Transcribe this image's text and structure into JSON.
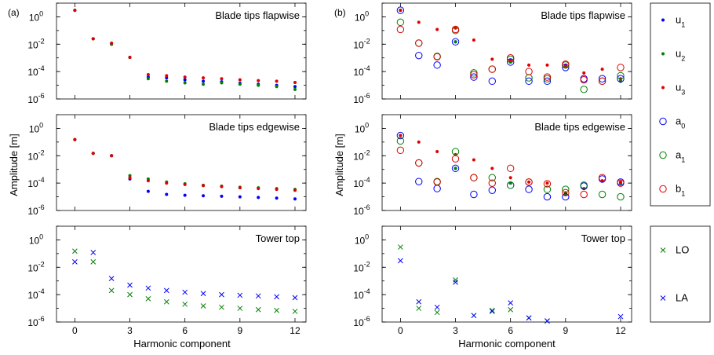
{
  "panel_labels": [
    "(a)",
    "(b)"
  ],
  "xlabel": "Harmonic component",
  "ylabel": "Amplitude [m]",
  "x_ticks": [
    "0",
    "3",
    "6",
    "9",
    "12"
  ],
  "y_ticks": [
    "10^0",
    "10^-2",
    "10^-4",
    "10^-6"
  ],
  "colors": {
    "blue": "#0000ff",
    "green": "#008000",
    "red": "#e00000"
  },
  "legend_blade": [
    {
      "base": "u",
      "sub": "1",
      "marker": "dot",
      "color": "blue"
    },
    {
      "base": "u",
      "sub": "2",
      "marker": "dot",
      "color": "green"
    },
    {
      "base": "u",
      "sub": "3",
      "marker": "dot",
      "color": "red"
    },
    {
      "base": "a",
      "sub": "0",
      "marker": "circle",
      "color": "blue"
    },
    {
      "base": "a",
      "sub": "1",
      "marker": "circle",
      "color": "green"
    },
    {
      "base": "b",
      "sub": "1",
      "marker": "circle",
      "color": "red"
    }
  ],
  "legend_tower": [
    {
      "label": "LO",
      "marker": "x",
      "color": "green"
    },
    {
      "label": "LA",
      "marker": "x",
      "color": "blue"
    }
  ],
  "chart_data": [
    {
      "type": "scatter",
      "title": "Blade tips flapwise",
      "panel": "(a)",
      "xlim": [
        -1,
        12.6
      ],
      "ylim": [
        1e-06,
        10
      ],
      "yscale": "log",
      "series": [
        {
          "name": "u1",
          "marker": "dot",
          "color": "blue",
          "x": [
            0,
            1,
            2,
            3,
            4,
            5,
            6,
            7,
            8,
            9,
            10,
            11,
            12
          ],
          "y": [
            3,
            0.025,
            0.01,
            0.0011,
            4e-05,
            3.5e-05,
            2.5e-05,
            2e-05,
            1.8e-05,
            1.4e-05,
            1.2e-05,
            1e-05,
            8e-06
          ]
        },
        {
          "name": "u2",
          "marker": "dot",
          "color": "green",
          "x": [
            0,
            1,
            2,
            3,
            4,
            5,
            6,
            7,
            8,
            9,
            10,
            11,
            12
          ],
          "y": [
            3,
            0.025,
            0.01,
            0.0011,
            3e-05,
            2e-05,
            1.5e-05,
            1.2e-05,
            1.5e-05,
            1.2e-05,
            1e-05,
            8e-06,
            5e-06
          ]
        },
        {
          "name": "u3",
          "marker": "dot",
          "color": "red",
          "x": [
            0,
            1,
            2,
            3,
            4,
            5,
            6,
            7,
            8,
            9,
            10,
            11,
            12
          ],
          "y": [
            3,
            0.025,
            0.012,
            0.0011,
            6e-05,
            5e-05,
            4e-05,
            3.5e-05,
            3e-05,
            2.5e-05,
            2.2e-05,
            2e-05,
            1.6e-05
          ]
        }
      ]
    },
    {
      "type": "scatter",
      "title": "Blade tips edgewise",
      "panel": "(a)",
      "xlim": [
        -1,
        12.6
      ],
      "ylim": [
        1e-06,
        10
      ],
      "yscale": "log",
      "series": [
        {
          "name": "u1",
          "marker": "dot",
          "color": "blue",
          "x": [
            0,
            1,
            2,
            3,
            4,
            5,
            6,
            7,
            8,
            9,
            10,
            11,
            12
          ],
          "y": [
            0.15,
            0.015,
            0.01,
            0.0002,
            2.5e-05,
            1.5e-05,
            1.3e-05,
            1.2e-05,
            1.1e-05,
            1e-05,
            9e-06,
            8e-06,
            7e-06
          ]
        },
        {
          "name": "u2",
          "marker": "dot",
          "color": "green",
          "x": [
            0,
            1,
            2,
            3,
            4,
            5,
            6,
            7,
            8,
            9,
            10,
            11,
            12
          ],
          "y": [
            0.15,
            0.015,
            0.01,
            0.00035,
            0.0002,
            0.00012,
            9e-05,
            7e-05,
            6e-05,
            5e-05,
            4.5e-05,
            4e-05,
            3.5e-05
          ]
        },
        {
          "name": "u3",
          "marker": "dot",
          "color": "red",
          "x": [
            0,
            1,
            2,
            3,
            4,
            5,
            6,
            7,
            8,
            9,
            10,
            11,
            12
          ],
          "y": [
            0.15,
            0.015,
            0.01,
            0.00025,
            0.00015,
            0.0001,
            8e-05,
            6.5e-05,
            5.5e-05,
            4.5e-05,
            4e-05,
            3.5e-05,
            3e-05
          ]
        }
      ]
    },
    {
      "type": "scatter",
      "title": "Tower top",
      "panel": "(a)",
      "xlim": [
        -1,
        12.6
      ],
      "ylim": [
        1e-06,
        10
      ],
      "yscale": "log",
      "series": [
        {
          "name": "LO",
          "marker": "x",
          "color": "green",
          "x": [
            0,
            1,
            2,
            3,
            4,
            5,
            6,
            7,
            8,
            9,
            10,
            11,
            12
          ],
          "y": [
            0.15,
            0.025,
            0.0002,
            0.0001,
            5e-05,
            3e-05,
            2e-05,
            1.5e-05,
            1.2e-05,
            1e-05,
            8e-06,
            7e-06,
            6e-06
          ]
        },
        {
          "name": "LA",
          "marker": "x",
          "color": "blue",
          "x": [
            0,
            1,
            2,
            3,
            4,
            5,
            6,
            7,
            8,
            9,
            10,
            11,
            12
          ],
          "y": [
            0.025,
            0.12,
            0.0015,
            0.0005,
            0.0003,
            0.0002,
            0.00015,
            0.00012,
            0.0001,
            9e-05,
            8e-05,
            7e-05,
            6e-05
          ]
        }
      ]
    },
    {
      "type": "scatter",
      "title": "Blade tips flapwise",
      "panel": "(b)",
      "xlim": [
        -1,
        12.6
      ],
      "ylim": [
        1e-06,
        10
      ],
      "yscale": "log",
      "series": [
        {
          "name": "u1",
          "marker": "dot",
          "color": "blue",
          "x": [
            0,
            3,
            6,
            9,
            12
          ],
          "y": [
            3,
            0.015,
            0.0005,
            0.00025,
            2e-05
          ]
        },
        {
          "name": "u2",
          "marker": "dot",
          "color": "green",
          "x": [
            0,
            3,
            6,
            9,
            12
          ],
          "y": [
            3,
            0.015,
            0.0005,
            0.00025,
            2e-05
          ]
        },
        {
          "name": "u3",
          "marker": "dot",
          "color": "red",
          "x": [
            0,
            1,
            2,
            3,
            4,
            5,
            6,
            7,
            8,
            9,
            10,
            11,
            12
          ],
          "y": [
            3,
            0.4,
            0.12,
            0.15,
            0.02,
            0.0008,
            0.0007,
            0.0003,
            0.0003,
            0.0003,
            8e-05,
            0.00015,
            3e-05
          ]
        },
        {
          "name": "a0",
          "marker": "circle",
          "color": "blue",
          "x": [
            0,
            1,
            2,
            3,
            4,
            5,
            6,
            7,
            8,
            9,
            10,
            11,
            12
          ],
          "y": [
            3,
            0.0015,
            0.0003,
            0.015,
            4e-05,
            2e-05,
            0.0005,
            2e-05,
            2e-05,
            0.0002,
            3e-05,
            3e-05,
            3e-05
          ]
        },
        {
          "name": "a1",
          "marker": "circle",
          "color": "green",
          "x": [
            0,
            1,
            2,
            3,
            4,
            5,
            6,
            7,
            8,
            9,
            10,
            11,
            12
          ],
          "y": [
            0.4,
            0.012,
            0.0013,
            0.1,
            8e-05,
            0.00015,
            0.0008,
            3.5e-05,
            3e-05,
            0.0003,
            5e-06,
            2e-05,
            5e-05
          ]
        },
        {
          "name": "b1",
          "marker": "circle",
          "color": "red",
          "x": [
            0,
            1,
            2,
            3,
            4,
            5,
            6,
            7,
            8,
            9,
            10,
            11,
            12
          ],
          "y": [
            0.12,
            0.012,
            0.0012,
            0.12,
            6e-05,
            0.00015,
            0.001,
            0.0001,
            4e-05,
            0.00035,
            2.5e-05,
            2e-05,
            0.0002
          ]
        }
      ]
    },
    {
      "type": "scatter",
      "title": "Blade tips edgewise",
      "panel": "(b)",
      "xlim": [
        -1,
        12.6
      ],
      "ylim": [
        1e-06,
        10
      ],
      "yscale": "log",
      "series": [
        {
          "name": "u1",
          "marker": "dot",
          "color": "blue",
          "x": [
            0,
            3,
            6,
            9,
            12
          ],
          "y": [
            0.3,
            0.0012,
            0.0001,
            1.5e-05,
            0.0001
          ]
        },
        {
          "name": "u2",
          "marker": "dot",
          "color": "green",
          "x": [
            0,
            3,
            6,
            9,
            12
          ],
          "y": [
            0.3,
            0.0012,
            0.0001,
            1.5e-05,
            0.0001
          ]
        },
        {
          "name": "u3",
          "marker": "dot",
          "color": "red",
          "x": [
            0,
            1,
            2,
            3,
            4,
            5,
            6,
            7,
            8,
            9,
            10,
            11,
            12
          ],
          "y": [
            0.3,
            0.1,
            0.02,
            0.012,
            0.005,
            0.0012,
            0.00025,
            0.00012,
            0.0001,
            2e-05,
            4e-05,
            0.00015,
            0.00012
          ]
        },
        {
          "name": "a0",
          "marker": "circle",
          "color": "blue",
          "x": [
            0,
            1,
            2,
            3,
            4,
            5,
            6,
            7,
            8,
            9,
            10,
            11,
            12
          ],
          "y": [
            0.3,
            0.00013,
            4e-05,
            0.0012,
            1.5e-05,
            3e-05,
            7e-05,
            3.5e-05,
            1e-05,
            1e-05,
            6e-05,
            0.0002,
            0.00012
          ]
        },
        {
          "name": "a1",
          "marker": "circle",
          "color": "green",
          "x": [
            0,
            1,
            2,
            3,
            4,
            5,
            6,
            7,
            8,
            9,
            10,
            11,
            12
          ],
          "y": [
            0.12,
            0.003,
            0.00013,
            0.02,
            0.00025,
            0.00025,
            7e-05,
            0.00012,
            3.5e-05,
            3.5e-05,
            7e-05,
            1.5e-05,
            1e-05
          ]
        },
        {
          "name": "b1",
          "marker": "circle",
          "color": "red",
          "x": [
            0,
            1,
            2,
            3,
            4,
            5,
            6,
            7,
            8,
            9,
            10,
            11,
            12
          ],
          "y": [
            0.025,
            0.003,
            0.00012,
            0.006,
            0.00025,
            0.0001,
            0.0012,
            0.00012,
            9e-05,
            2e-05,
            1.5e-05,
            0.00025,
            0.0001
          ]
        }
      ]
    },
    {
      "type": "scatter",
      "title": "Tower top",
      "panel": "(b)",
      "xlim": [
        -1,
        12.6
      ],
      "ylim": [
        1e-06,
        10
      ],
      "yscale": "log",
      "series": [
        {
          "name": "LO",
          "marker": "x",
          "color": "green",
          "x": [
            0,
            1,
            2,
            3,
            4,
            5,
            6,
            7,
            8,
            9,
            10,
            11,
            12
          ],
          "y": [
            0.3,
            1e-05,
            5e-06,
            0.0012,
            3e-06,
            7e-06,
            8e-06,
            2e-06,
            1.2e-06,
            null,
            null,
            null,
            null
          ]
        },
        {
          "name": "LA",
          "marker": "x",
          "color": "blue",
          "x": [
            0,
            1,
            2,
            3,
            4,
            5,
            6,
            7,
            8,
            9,
            10,
            11,
            12
          ],
          "y": [
            0.03,
            3e-05,
            1.2e-05,
            0.0008,
            3e-06,
            6e-06,
            2.5e-05,
            2e-06,
            1.2e-06,
            null,
            null,
            null,
            2.5e-06
          ]
        }
      ]
    }
  ]
}
